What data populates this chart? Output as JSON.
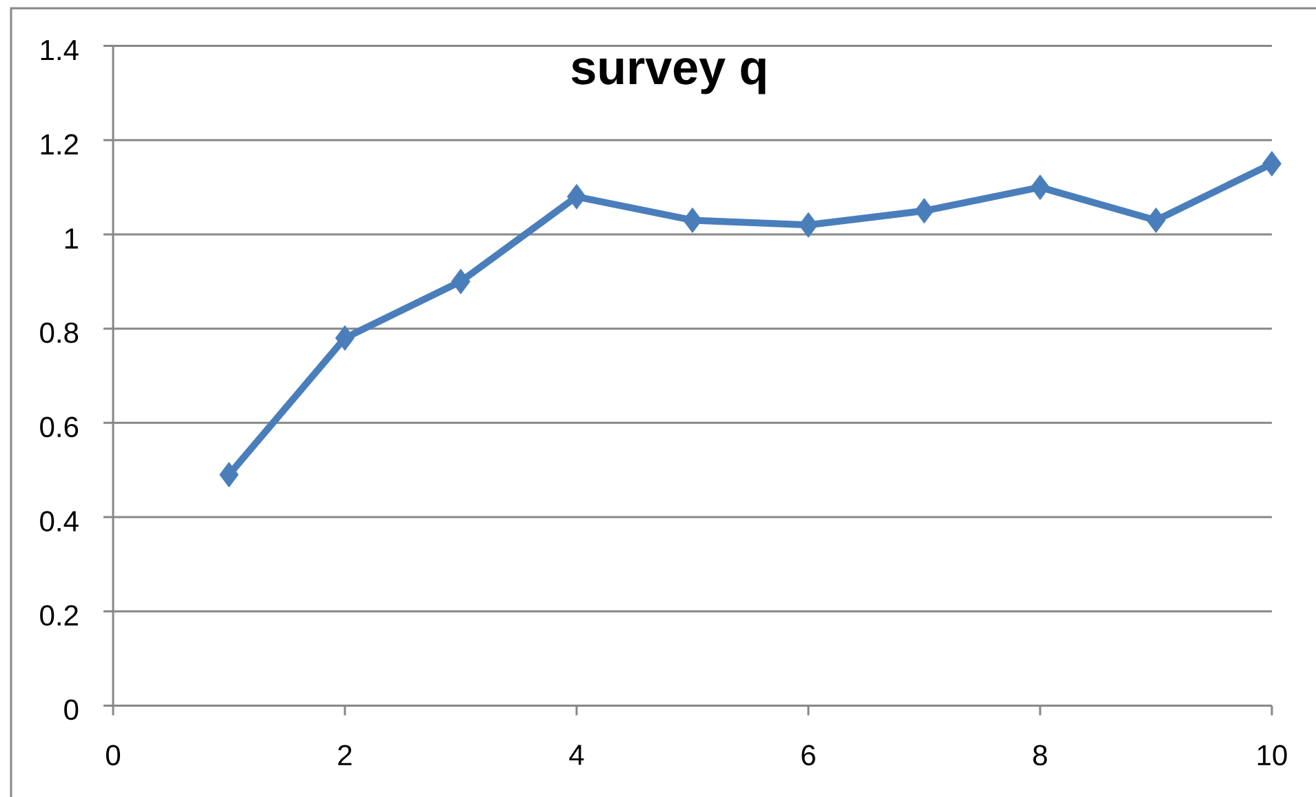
{
  "chart_data": {
    "type": "line",
    "title": "survey q",
    "x": [
      1,
      2,
      3,
      4,
      5,
      6,
      7,
      8,
      9,
      10
    ],
    "series": [
      {
        "color": "#4a7ebb",
        "values": [
          0.49,
          0.78,
          0.9,
          1.08,
          1.03,
          1.02,
          1.05,
          1.1,
          1.03,
          1.15
        ]
      }
    ],
    "xlim": [
      0,
      10
    ],
    "ylim": [
      0,
      1.4
    ],
    "xticks": [
      0,
      2,
      4,
      6,
      8,
      10
    ],
    "yticks": [
      0,
      0.2,
      0.4,
      0.6,
      0.8,
      1,
      1.2,
      1.4
    ],
    "grid": "y",
    "marker": "diamond",
    "line_style": "solid"
  }
}
